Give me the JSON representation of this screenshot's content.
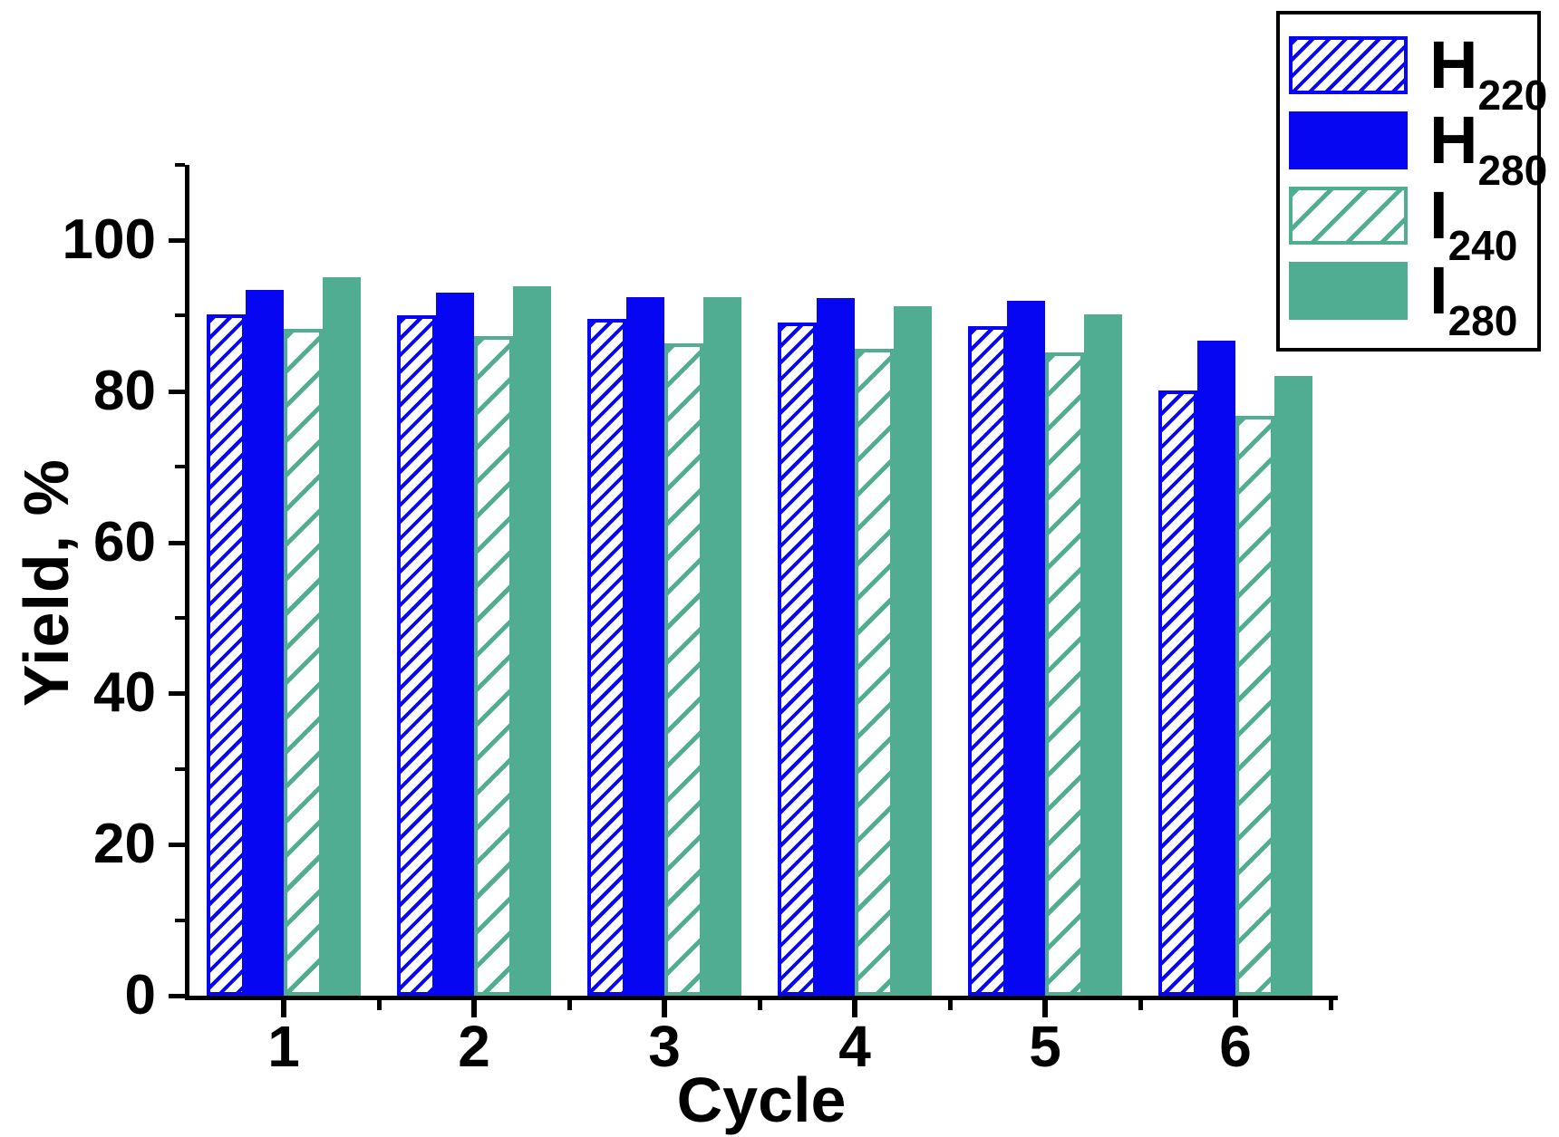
{
  "chart_data": {
    "type": "bar",
    "title": "",
    "xlabel": "Cycle",
    "ylabel": "Yield, %",
    "categories": [
      "1",
      "2",
      "3",
      "4",
      "5",
      "6"
    ],
    "series": [
      {
        "name": "H220",
        "label_main": "H",
        "label_sub": "220",
        "pattern": "hatched",
        "color": "#0606f2",
        "hatch_line": 4,
        "hatch_period": 13,
        "values": [
          90.2,
          90.0,
          89.6,
          89.1,
          88.6,
          80.1
        ]
      },
      {
        "name": "H280",
        "label_main": "H",
        "label_sub": "280",
        "pattern": "solid",
        "color": "#0606f2",
        "hatch_line": 0,
        "hatch_period": 0,
        "values": [
          93.4,
          93.0,
          92.5,
          92.3,
          92.0,
          86.7
        ]
      },
      {
        "name": "I240",
        "label_main": "I",
        "label_sub": "240",
        "pattern": "hatched",
        "color": "#50ad92",
        "hatch_line": 5,
        "hatch_period": 27,
        "values": [
          88.3,
          87.3,
          86.3,
          85.6,
          85.1,
          76.7
        ]
      },
      {
        "name": "I280",
        "label_main": "I",
        "label_sub": "280",
        "pattern": "solid",
        "color": "#50ad92",
        "hatch_line": 0,
        "hatch_period": 0,
        "values": [
          95.1,
          93.9,
          92.5,
          91.3,
          90.2,
          82.0
        ]
      }
    ],
    "ylim": [
      0,
      110
    ],
    "yticks_major": [
      0,
      20,
      40,
      60,
      80,
      100
    ],
    "yticks_minor": [
      10,
      30,
      50,
      70,
      90,
      110
    ],
    "xticks_minor": [
      1.5,
      2.5,
      3.5,
      4.5,
      5.5,
      6.5
    ],
    "grid": false,
    "legend_position": "top-right",
    "axis_color": "#000000",
    "background_color": "#ffffff"
  }
}
